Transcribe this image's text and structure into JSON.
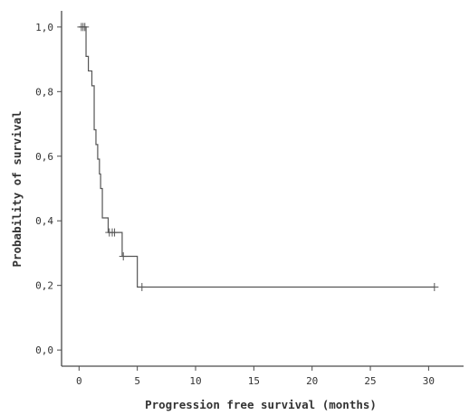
{
  "chart_data": {
    "type": "line",
    "subtype": "kaplan-meier-step",
    "title": "",
    "xlabel": "Progression free survival (months)",
    "ylabel": "Probability of survival",
    "xlim": [
      -1.5,
      33
    ],
    "ylim": [
      -0.05,
      1.05
    ],
    "x_ticks": [
      0,
      5,
      10,
      15,
      20,
      25,
      30
    ],
    "x_tick_labels": [
      "0",
      "5",
      "10",
      "15",
      "20",
      "25",
      "30"
    ],
    "y_ticks": [
      0.0,
      0.2,
      0.4,
      0.6,
      0.8,
      1.0
    ],
    "y_tick_labels": [
      "0,0",
      "0,2",
      "0,4",
      "0,6",
      "0,8",
      "1,0"
    ],
    "grid": false,
    "legend": "none",
    "line_color": "#555555",
    "series": [
      {
        "steps": [
          {
            "x": 0.0,
            "y": 1.0
          },
          {
            "x": 0.6,
            "y": 1.0
          },
          {
            "x": 0.6,
            "y": 0.909
          },
          {
            "x": 0.8,
            "y": 0.909
          },
          {
            "x": 0.8,
            "y": 0.864
          },
          {
            "x": 1.1,
            "y": 0.864
          },
          {
            "x": 1.1,
            "y": 0.818
          },
          {
            "x": 1.3,
            "y": 0.818
          },
          {
            "x": 1.3,
            "y": 0.682
          },
          {
            "x": 1.45,
            "y": 0.682
          },
          {
            "x": 1.45,
            "y": 0.636
          },
          {
            "x": 1.6,
            "y": 0.636
          },
          {
            "x": 1.6,
            "y": 0.591
          },
          {
            "x": 1.75,
            "y": 0.591
          },
          {
            "x": 1.75,
            "y": 0.545
          },
          {
            "x": 1.85,
            "y": 0.545
          },
          {
            "x": 1.85,
            "y": 0.5
          },
          {
            "x": 2.0,
            "y": 0.5
          },
          {
            "x": 2.0,
            "y": 0.409
          },
          {
            "x": 2.5,
            "y": 0.409
          },
          {
            "x": 2.5,
            "y": 0.364
          },
          {
            "x": 3.7,
            "y": 0.364
          },
          {
            "x": 3.7,
            "y": 0.29
          },
          {
            "x": 5.0,
            "y": 0.29
          },
          {
            "x": 5.0,
            "y": 0.195
          },
          {
            "x": 30.5,
            "y": 0.195
          }
        ],
        "censored": [
          {
            "x": 0.2,
            "y": 1.0
          },
          {
            "x": 0.35,
            "y": 1.0
          },
          {
            "x": 0.5,
            "y": 1.0
          },
          {
            "x": 2.6,
            "y": 0.364
          },
          {
            "x": 2.85,
            "y": 0.364
          },
          {
            "x": 3.05,
            "y": 0.364
          },
          {
            "x": 3.8,
            "y": 0.29
          },
          {
            "x": 5.4,
            "y": 0.195
          },
          {
            "x": 30.5,
            "y": 0.195
          }
        ]
      }
    ]
  }
}
